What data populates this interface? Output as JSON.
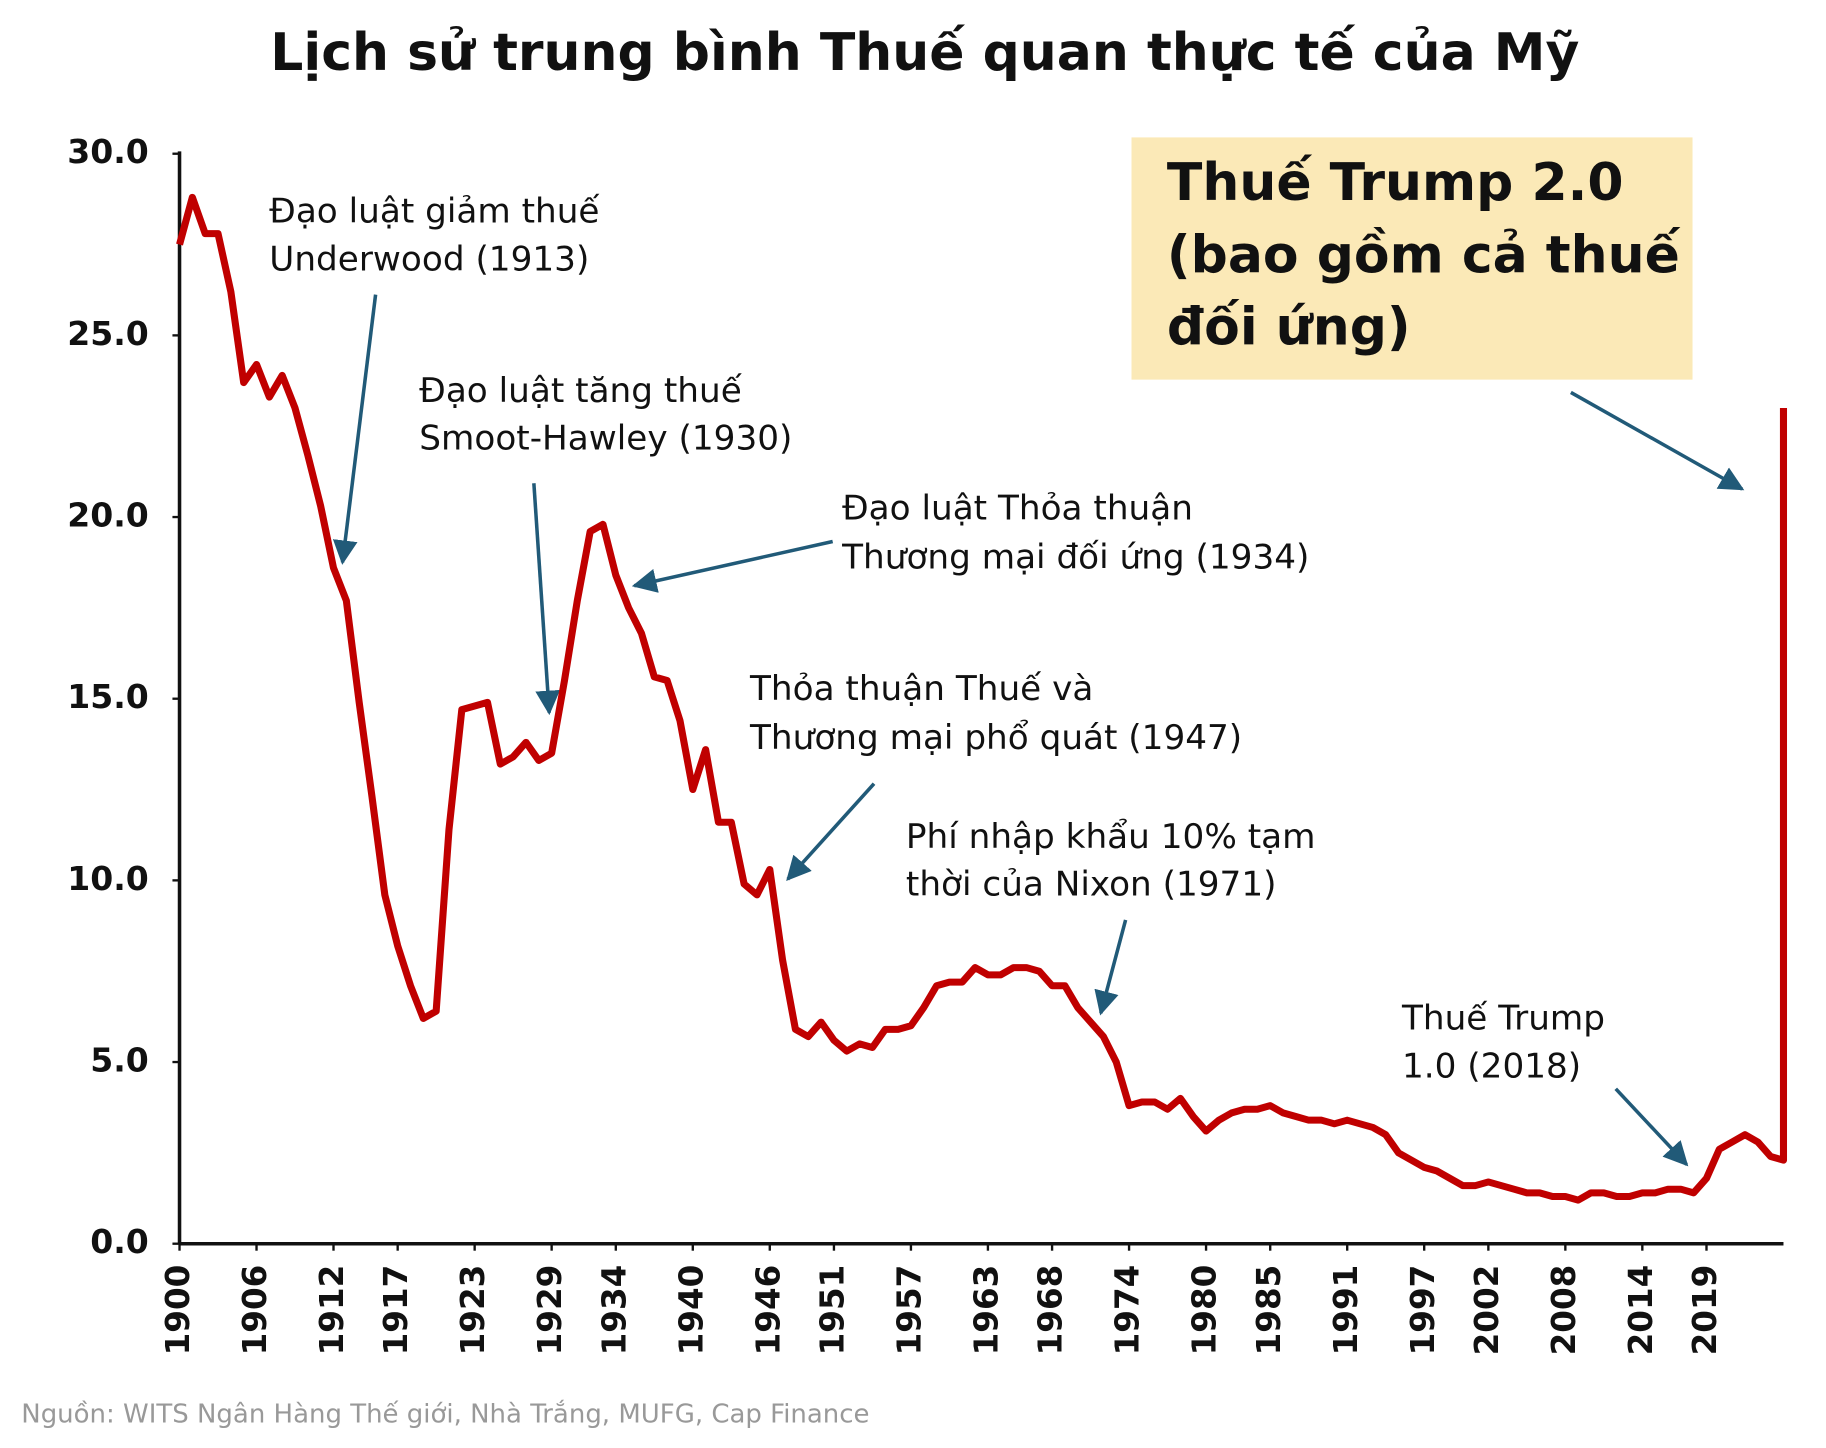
{
  "chart_data": {
    "type": "line",
    "title": "Lịch sử trung bình Thuế quan thực tế của Mỹ",
    "source": "Nguồn: WITS Ngân Hàng Thế giới, Nhà Trắng, MUFG, Cap Finance",
    "x": [
      1900,
      1901,
      1902,
      1903,
      1904,
      1905,
      1906,
      1907,
      1908,
      1909,
      1910,
      1911,
      1912,
      1913,
      1914,
      1915,
      1916,
      1917,
      1918,
      1919,
      1920,
      1921,
      1922,
      1923,
      1924,
      1925,
      1926,
      1927,
      1928,
      1929,
      1930,
      1931,
      1932,
      1933,
      1934,
      1935,
      1936,
      1937,
      1938,
      1939,
      1940,
      1941,
      1942,
      1943,
      1944,
      1945,
      1946,
      1947,
      1948,
      1949,
      1950,
      1951,
      1952,
      1953,
      1954,
      1955,
      1956,
      1957,
      1958,
      1959,
      1960,
      1961,
      1962,
      1963,
      1964,
      1965,
      1966,
      1967,
      1968,
      1969,
      1970,
      1971,
      1972,
      1973,
      1974,
      1975,
      1976,
      1977,
      1978,
      1979,
      1980,
      1981,
      1982,
      1983,
      1984,
      1985,
      1986,
      1987,
      1988,
      1989,
      1990,
      1991,
      1992,
      1993,
      1994,
      1995,
      1996,
      1997,
      1998,
      1999,
      2000,
      2001,
      2002,
      2003,
      2004,
      2005,
      2006,
      2007,
      2008,
      2009,
      2010,
      2011,
      2012,
      2013,
      2014,
      2015,
      2016,
      2017,
      2018,
      2019,
      2020,
      2021,
      2022,
      2023,
      2024,
      2025,
      2025
    ],
    "series": [
      {
        "color": "#c00000",
        "values": [
          27.5,
          28.8,
          27.8,
          27.8,
          26.2,
          23.7,
          24.2,
          23.3,
          23.9,
          23.0,
          21.7,
          20.3,
          18.6,
          17.7,
          14.9,
          12.3,
          9.6,
          8.2,
          7.1,
          6.2,
          6.4,
          11.4,
          14.7,
          14.8,
          14.9,
          13.2,
          13.4,
          13.8,
          13.3,
          13.5,
          15.5,
          17.7,
          19.6,
          19.8,
          18.4,
          17.5,
          16.8,
          15.6,
          15.5,
          14.4,
          12.5,
          13.6,
          11.6,
          11.6,
          9.9,
          9.6,
          10.3,
          7.8,
          5.9,
          5.7,
          6.1,
          5.6,
          5.3,
          5.5,
          5.4,
          5.9,
          5.9,
          6.0,
          6.5,
          7.1,
          7.2,
          7.2,
          7.6,
          7.4,
          7.4,
          7.6,
          7.6,
          7.5,
          7.1,
          7.1,
          6.5,
          6.1,
          5.7,
          5.0,
          3.8,
          3.9,
          3.9,
          3.7,
          4.0,
          3.5,
          3.1,
          3.4,
          3.6,
          3.7,
          3.7,
          3.8,
          3.6,
          3.5,
          3.4,
          3.4,
          3.3,
          3.4,
          3.3,
          3.2,
          3.0,
          2.5,
          2.3,
          2.1,
          2.0,
          1.8,
          1.6,
          1.6,
          1.7,
          1.6,
          1.5,
          1.4,
          1.4,
          1.3,
          1.3,
          1.2,
          1.4,
          1.4,
          1.3,
          1.3,
          1.4,
          1.4,
          1.5,
          1.5,
          1.4,
          1.8,
          2.6,
          2.8,
          3.0,
          2.8,
          2.4,
          2.3,
          23.0
        ]
      }
    ],
    "xlim": [
      1900,
      2025
    ],
    "xticks": [
      1900,
      1906,
      1912,
      1917,
      1923,
      1929,
      1934,
      1940,
      1946,
      1951,
      1957,
      1963,
      1968,
      1974,
      1980,
      1985,
      1991,
      1997,
      2002,
      2008,
      2014,
      2019
    ],
    "ylim": [
      0,
      30
    ],
    "yticks": [
      {
        "value": 0,
        "label": "0.0"
      },
      {
        "value": 5,
        "label": "5.0"
      },
      {
        "value": 10,
        "label": "10.0"
      },
      {
        "value": 15,
        "label": "15.0"
      },
      {
        "value": 20,
        "label": "20.0"
      },
      {
        "value": 25,
        "label": "25.0"
      },
      {
        "value": 30,
        "label": "30.0"
      }
    ],
    "annotations": [
      {
        "lines": [
          "Đạo luật giảm thuế",
          "Underwood (1913)"
        ]
      },
      {
        "lines": [
          "Đạo luật tăng thuế",
          "Smoot-Hawley (1930)"
        ]
      },
      {
        "lines": [
          "Đạo luật Thỏa thuận",
          "Thương mại đối ứng (1934)"
        ]
      },
      {
        "lines": [
          "Thỏa thuận Thuế và",
          "Thương mại phổ quát (1947)"
        ]
      },
      {
        "lines": [
          "Phí nhập khẩu 10% tạm",
          "thời của Nixon (1971)"
        ]
      },
      {
        "lines": [
          "Thuế Trump",
          "1.0 (2018)"
        ]
      },
      {
        "lines": [
          "Thuế Trump 2.0",
          "(bao gồm cả thuế",
          "đối ứng)"
        ]
      }
    ]
  }
}
